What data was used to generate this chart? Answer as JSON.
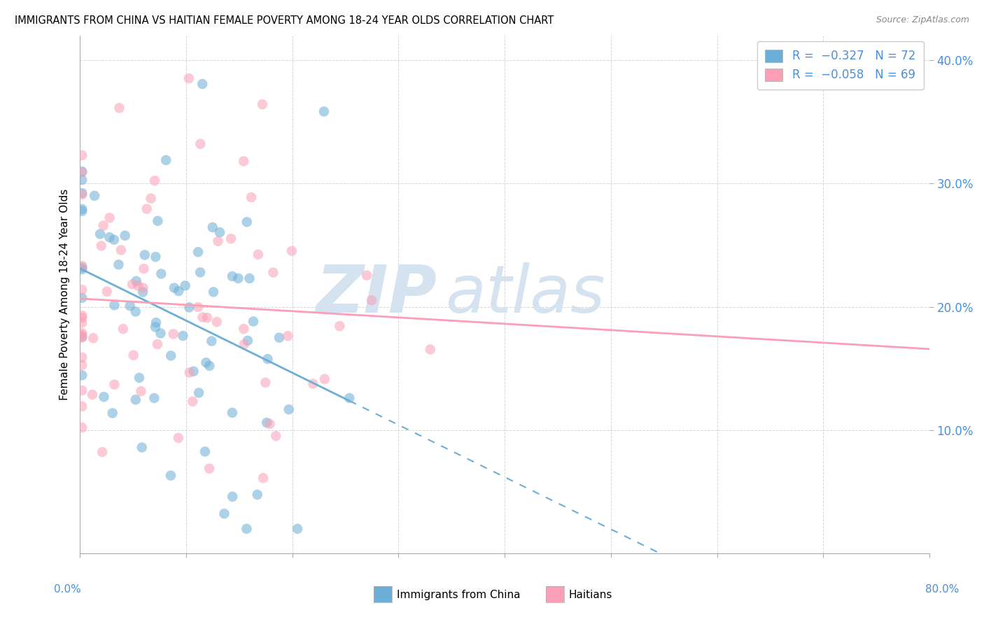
{
  "title": "IMMIGRANTS FROM CHINA VS HAITIAN FEMALE POVERTY AMONG 18-24 YEAR OLDS CORRELATION CHART",
  "source": "Source: ZipAtlas.com",
  "ylabel": "Female Poverty Among 18-24 Year Olds",
  "xlim": [
    0.0,
    0.8
  ],
  "ylim": [
    0.0,
    0.42
  ],
  "color_china": "#6baed6",
  "color_haiti": "#fa9fb5",
  "watermark_color": "#d4e3ef",
  "china_seed": 77,
  "haiti_seed": 55,
  "china_r": -0.327,
  "china_n": 72,
  "haiti_r": -0.058,
  "haiti_n": 69
}
